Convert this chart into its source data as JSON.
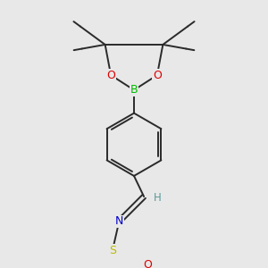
{
  "bg_color": "#e8e8e8",
  "bond_color": "#2a2a2a",
  "line_width": 1.4,
  "atom_colors": {
    "B": "#00bb00",
    "O": "#dd0000",
    "N": "#0000cc",
    "S": "#bbbb00",
    "C": "#2a2a2a",
    "H": "#5a9a9a"
  },
  "font_size": 9,
  "small_font": 7.5,
  "figsize": [
    3.0,
    3.0
  ],
  "dpi": 100
}
